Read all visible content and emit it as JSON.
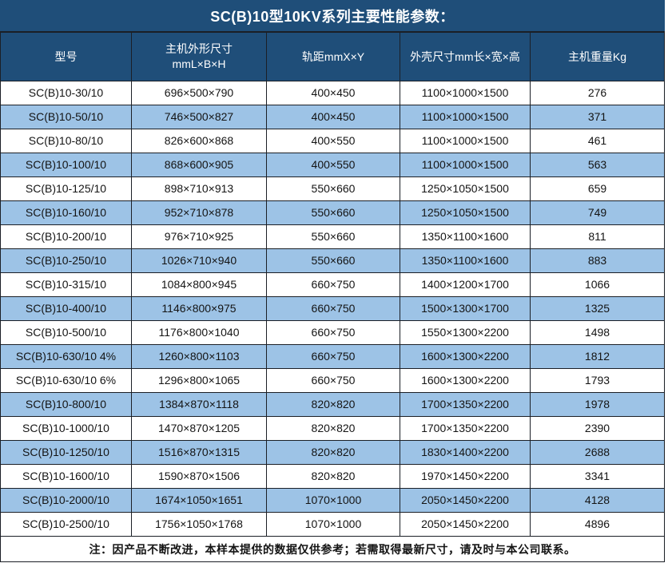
{
  "title": "SC(B)10型10KV系列主要性能参数：",
  "colors": {
    "header_bg": "#1F4E79",
    "row_alt_bg": "#9DC3E6",
    "row_bg": "#FFFFFF",
    "border": "#1B1F26",
    "header_text": "#FFFFFF",
    "body_text": "#141414"
  },
  "table": {
    "headers": {
      "model": "型号",
      "main_dims_line1": "主机外形尺寸",
      "main_dims_line2": "mmL×B×H",
      "rail": "轨距mmX×Y",
      "shell_dims": "外壳尺寸mm长×宽×高",
      "weight": "主机重量Kg"
    },
    "rows": [
      {
        "model": "SC(B)10-30/10",
        "main_dims": "696×500×790",
        "rail": "400×450",
        "shell_dims": "1100×1000×1500",
        "weight": "276"
      },
      {
        "model": "SC(B)10-50/10",
        "main_dims": "746×500×827",
        "rail": "400×450",
        "shell_dims": "1100×1000×1500",
        "weight": "371"
      },
      {
        "model": "SC(B)10-80/10",
        "main_dims": "826×600×868",
        "rail": "400×550",
        "shell_dims": "1100×1000×1500",
        "weight": "461"
      },
      {
        "model": "SC(B)10-100/10",
        "main_dims": "868×600×905",
        "rail": "400×550",
        "shell_dims": "1100×1000×1500",
        "weight": "563"
      },
      {
        "model": "SC(B)10-125/10",
        "main_dims": "898×710×913",
        "rail": "550×660",
        "shell_dims": "1250×1050×1500",
        "weight": "659"
      },
      {
        "model": "SC(B)10-160/10",
        "main_dims": "952×710×878",
        "rail": "550×660",
        "shell_dims": "1250×1050×1500",
        "weight": "749"
      },
      {
        "model": "SC(B)10-200/10",
        "main_dims": "976×710×925",
        "rail": "550×660",
        "shell_dims": "1350×1100×1600",
        "weight": "811"
      },
      {
        "model": "SC(B)10-250/10",
        "main_dims": "1026×710×940",
        "rail": "550×660",
        "shell_dims": "1350×1100×1600",
        "weight": "883"
      },
      {
        "model": "SC(B)10-315/10",
        "main_dims": "1084×800×945",
        "rail": "660×750",
        "shell_dims": "1400×1200×1700",
        "weight": "1066"
      },
      {
        "model": "SC(B)10-400/10",
        "main_dims": "1146×800×975",
        "rail": "660×750",
        "shell_dims": "1500×1300×1700",
        "weight": "1325"
      },
      {
        "model": "SC(B)10-500/10",
        "main_dims": "1176×800×1040",
        "rail": "660×750",
        "shell_dims": "1550×1300×2200",
        "weight": "1498"
      },
      {
        "model": "SC(B)10-630/10 4%",
        "main_dims": "1260×800×1103",
        "rail": "660×750",
        "shell_dims": "1600×1300×2200",
        "weight": "1812"
      },
      {
        "model": "SC(B)10-630/10 6%",
        "main_dims": "1296×800×1065",
        "rail": "660×750",
        "shell_dims": "1600×1300×2200",
        "weight": "1793"
      },
      {
        "model": "SC(B)10-800/10",
        "main_dims": "1384×870×1118",
        "rail": "820×820",
        "shell_dims": "1700×1350×2200",
        "weight": "1978"
      },
      {
        "model": "SC(B)10-1000/10",
        "main_dims": "1470×870×1205",
        "rail": "820×820",
        "shell_dims": "1700×1350×2200",
        "weight": "2390"
      },
      {
        "model": "SC(B)10-1250/10",
        "main_dims": "1516×870×1315",
        "rail": "820×820",
        "shell_dims": "1830×1400×2200",
        "weight": "2688"
      },
      {
        "model": "SC(B)10-1600/10",
        "main_dims": "1590×870×1506",
        "rail": "820×820",
        "shell_dims": "1970×1450×2200",
        "weight": "3341"
      },
      {
        "model": "SC(B)10-2000/10",
        "main_dims": "1674×1050×1651",
        "rail": "1070×1000",
        "shell_dims": "2050×1450×2200",
        "weight": "4128"
      },
      {
        "model": "SC(B)10-2500/10",
        "main_dims": "1756×1050×1768",
        "rail": "1070×1000",
        "shell_dims": "2050×1450×2200",
        "weight": "4896"
      }
    ],
    "note": "注：因产品不断改进，本样本提供的数据仅供参考；若需取得最新尺寸，请及时与本公司联系。"
  }
}
